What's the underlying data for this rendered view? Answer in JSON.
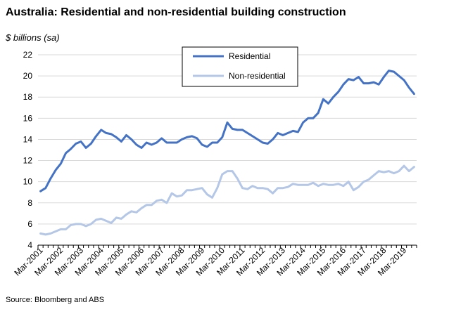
{
  "chart_data": {
    "type": "line",
    "title": "Australia: Residential and non-residential building construction",
    "ylabel": "$ billions (sa)",
    "xlabel": "",
    "source": "Source: Bloomberg and ABS",
    "ylim": [
      4,
      22
    ],
    "yticks": [
      4,
      6,
      8,
      10,
      12,
      14,
      16,
      18,
      20,
      22
    ],
    "xtick_labels": [
      "Mar-2001",
      "Mar-2002",
      "Mar-2003",
      "Mar-2004",
      "Mar-2005",
      "Mar-2006",
      "Mar-2007",
      "Mar-2008",
      "Mar-2009",
      "Mar-2010",
      "Mar-2011",
      "Mar-2012",
      "Mar-2013",
      "Mar-2014",
      "Mar-2015",
      "Mar-2016",
      "Mar-2017",
      "Mar-2018",
      "Mar-2019"
    ],
    "grid": "horizontal",
    "legend_position": "top-center",
    "x_start": "Mar-2001",
    "x_frequency": "quarterly",
    "series": [
      {
        "name": "Residential",
        "color": "#4472C4",
        "values": [
          9.1,
          9.4,
          10.3,
          11.1,
          11.7,
          12.7,
          13.1,
          13.6,
          13.8,
          13.2,
          13.6,
          14.3,
          14.9,
          14.6,
          14.5,
          14.2,
          13.8,
          14.4,
          14.0,
          13.5,
          13.2,
          13.7,
          13.5,
          13.7,
          14.1,
          13.7,
          13.7,
          13.7,
          14.0,
          14.2,
          14.3,
          14.1,
          13.5,
          13.3,
          13.7,
          13.7,
          14.2,
          15.6,
          15.0,
          14.9,
          14.9,
          14.6,
          14.3,
          14.0,
          13.7,
          13.6,
          14.0,
          14.6,
          14.4,
          14.6,
          14.8,
          14.7,
          15.6,
          16.0,
          16.0,
          16.5,
          17.8,
          17.4,
          18.0,
          18.5,
          19.2,
          19.7,
          19.6,
          19.9,
          19.3,
          19.3,
          19.4,
          19.2,
          19.9,
          20.5,
          20.4,
          20.0,
          19.6,
          18.9,
          18.3
        ]
      },
      {
        "name": "Non-residential",
        "color": "#B4C7E7",
        "values": [
          5.1,
          5.0,
          5.1,
          5.3,
          5.5,
          5.5,
          5.9,
          6.0,
          6.0,
          5.8,
          6.0,
          6.4,
          6.5,
          6.3,
          6.1,
          6.6,
          6.5,
          6.9,
          7.2,
          7.1,
          7.5,
          7.8,
          7.8,
          8.2,
          8.3,
          8.0,
          8.9,
          8.6,
          8.7,
          9.2,
          9.2,
          9.3,
          9.4,
          8.8,
          8.5,
          9.4,
          10.7,
          11.0,
          11.0,
          10.3,
          9.4,
          9.3,
          9.6,
          9.4,
          9.4,
          9.3,
          8.9,
          9.4,
          9.4,
          9.5,
          9.8,
          9.7,
          9.7,
          9.7,
          9.9,
          9.6,
          9.8,
          9.7,
          9.7,
          9.8,
          9.6,
          10.0,
          9.2,
          9.5,
          10.0,
          10.2,
          10.6,
          11.0,
          10.9,
          11.0,
          10.8,
          11.0,
          11.5,
          11.0,
          11.4
        ]
      }
    ]
  }
}
